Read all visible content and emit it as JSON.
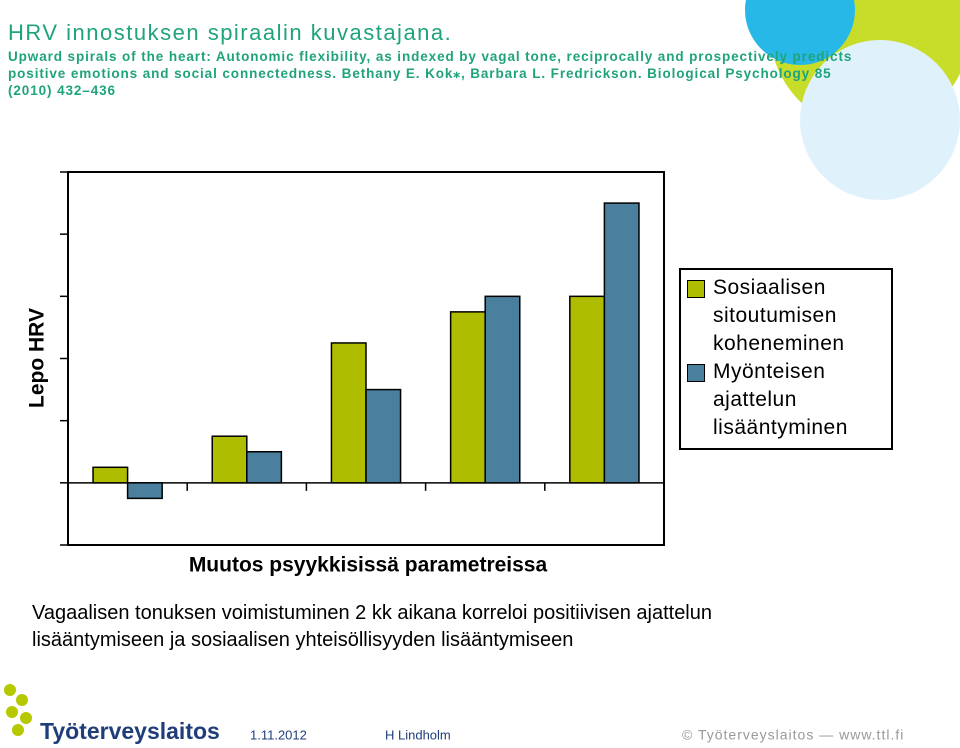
{
  "slide": {
    "title": "HRV innostuksen spiraalin kuvastajana.",
    "citation": "Upward spirals of the heart: Autonomic flexibility, as indexed by vagal tone, reciprocally and prospectively predicts positive emotions and social connectedness. Bethany E. Kok⁎, Barbara L. Fredrickson. Biological Psychology 85 (2010) 432–436",
    "body": "Vagaalisen tonuksen voimistuminen 2 kk aikana korreloi positiivisen ajattelun lisääntymiseen ja sosiaalisen yhteisöllisyyden lisääntymiseen",
    "logo": "Työterveyslaitos",
    "date": "1.11.2012",
    "author": "H Lindholm",
    "copyright": "© Työterveyslaitos — www.ttl.fi"
  },
  "chart_data": {
    "type": "bar",
    "categories": [
      null,
      null,
      null,
      null,
      null
    ],
    "series": [
      {
        "name": "Sosiaalisen sitoutumisen koheneminen",
        "color": "#afbd00",
        "values": [
          0.25,
          0.75,
          2.25,
          2.75,
          3
        ]
      },
      {
        "name": "Myönteisen ajattelun lisääntyminen",
        "color": "#4a7f9e",
        "values": [
          -0.25,
          0.5,
          1.5,
          3,
          4.5
        ]
      }
    ],
    "ylim": [
      -1,
      5
    ],
    "yticks": [
      -1,
      0,
      1,
      2,
      3,
      4,
      5
    ],
    "grid": false,
    "ylabel": "Lepo HRV",
    "xlabel": "Muutos psyykkisissä parametreissa",
    "legend": "right"
  }
}
